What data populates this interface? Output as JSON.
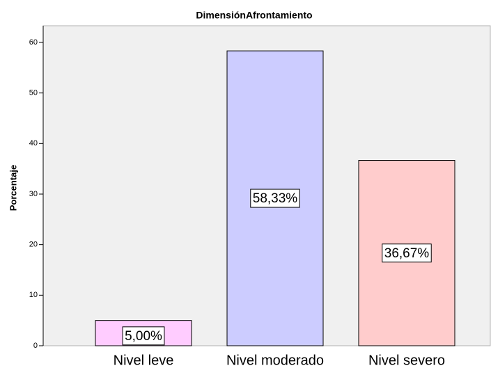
{
  "chart_data": {
    "type": "bar",
    "title": "DimensiónAfrontamiento",
    "y_label": "Porcentaje",
    "categories": [
      "Nivel leve",
      "Nivel moderado",
      "Nivel severo"
    ],
    "values": [
      5,
      58.33,
      36.67
    ],
    "value_labels": [
      "5,00%",
      "58,33%",
      "36,67%"
    ],
    "colors": [
      "#ffccff",
      "#ccccff",
      "#ffcccc"
    ],
    "ylim": [
      0,
      63.3
    ],
    "yticks": [
      0,
      10,
      20,
      30,
      40,
      50,
      60
    ],
    "grid": false
  }
}
